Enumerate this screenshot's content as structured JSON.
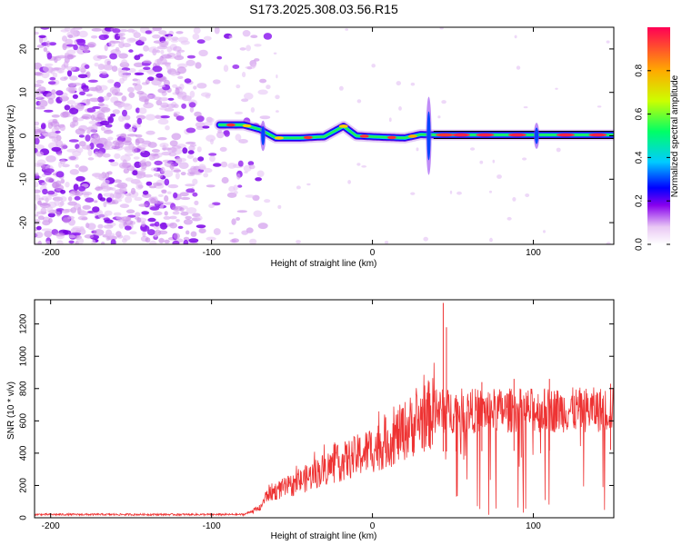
{
  "title": "S173.2025.308.03.56.R15",
  "chart_data": [
    {
      "type": "heatmap",
      "name": "spectrogram",
      "title": "S173.2025.308.03.56.R15",
      "xlabel": "Height of straight line (km)",
      "ylabel": "Frequency (Hz)",
      "xlim": [
        -210,
        150
      ],
      "ylim": [
        -25,
        25
      ],
      "xticks": [
        -200,
        -100,
        0,
        100
      ],
      "yticks": [
        -20,
        -10,
        0,
        10,
        20
      ],
      "colorbar": {
        "label": "Normalized spectral amplitude",
        "range": [
          0,
          1
        ],
        "ticks": [
          0,
          0.2,
          0.4,
          0.6,
          0.8
        ],
        "tick_labels": [
          "0.0",
          "0.2",
          "0.4",
          "0.6",
          "0.8"
        ],
        "colormap": [
          "#ffffff",
          "#e9c8f4",
          "#8800ee",
          "#0000ff",
          "#00ccff",
          "#00ff66",
          "#ccff00",
          "#ffaa00",
          "#ff0055"
        ]
      },
      "noise_region": {
        "x": [
          -210,
          -95
        ],
        "y": [
          -25,
          25
        ]
      },
      "ridge": [
        {
          "x": -95,
          "y": 2.5
        },
        {
          "x": -80,
          "y": 2.5
        },
        {
          "x": -70,
          "y": 1.5
        },
        {
          "x": -60,
          "y": -0.5
        },
        {
          "x": -45,
          "y": -0.5
        },
        {
          "x": -30,
          "y": -0.2
        },
        {
          "x": -18,
          "y": 2.2
        },
        {
          "x": -10,
          "y": 0.0
        },
        {
          "x": 5,
          "y": -0.3
        },
        {
          "x": 20,
          "y": -0.5
        },
        {
          "x": 30,
          "y": 0.3
        },
        {
          "x": 40,
          "y": 0.2
        },
        {
          "x": 60,
          "y": 0.2
        },
        {
          "x": 100,
          "y": 0.2
        },
        {
          "x": 150,
          "y": 0.2
        }
      ]
    },
    {
      "type": "line",
      "name": "snr",
      "xlabel": "Height of straight line (km)",
      "ylabel": "SNR (10 * v/v)",
      "xlim": [
        -210,
        150
      ],
      "ylim": [
        0,
        1350
      ],
      "xticks": [
        -200,
        -100,
        0,
        100
      ],
      "yticks": [
        0,
        200,
        400,
        600,
        800,
        1000,
        1200
      ],
      "color": "#ee3333",
      "envelope": [
        {
          "x": -210,
          "y": 20
        },
        {
          "x": -80,
          "y": 20
        },
        {
          "x": -70,
          "y": 60
        },
        {
          "x": -65,
          "y": 150
        },
        {
          "x": -50,
          "y": 200
        },
        {
          "x": -30,
          "y": 300
        },
        {
          "x": -10,
          "y": 380
        },
        {
          "x": 10,
          "y": 470
        },
        {
          "x": 20,
          "y": 540
        },
        {
          "x": 30,
          "y": 610
        },
        {
          "x": 40,
          "y": 660
        },
        {
          "x": 150,
          "y": 670
        }
      ],
      "spikes": [
        {
          "x": 44,
          "y": 1330
        },
        {
          "x": 46,
          "y": 1180
        },
        {
          "x": 52,
          "y": 760
        },
        {
          "x": 68,
          "y": 840
        },
        {
          "x": 88,
          "y": 860
        },
        {
          "x": 110,
          "y": 860
        },
        {
          "x": 148,
          "y": 830
        }
      ]
    }
  ]
}
